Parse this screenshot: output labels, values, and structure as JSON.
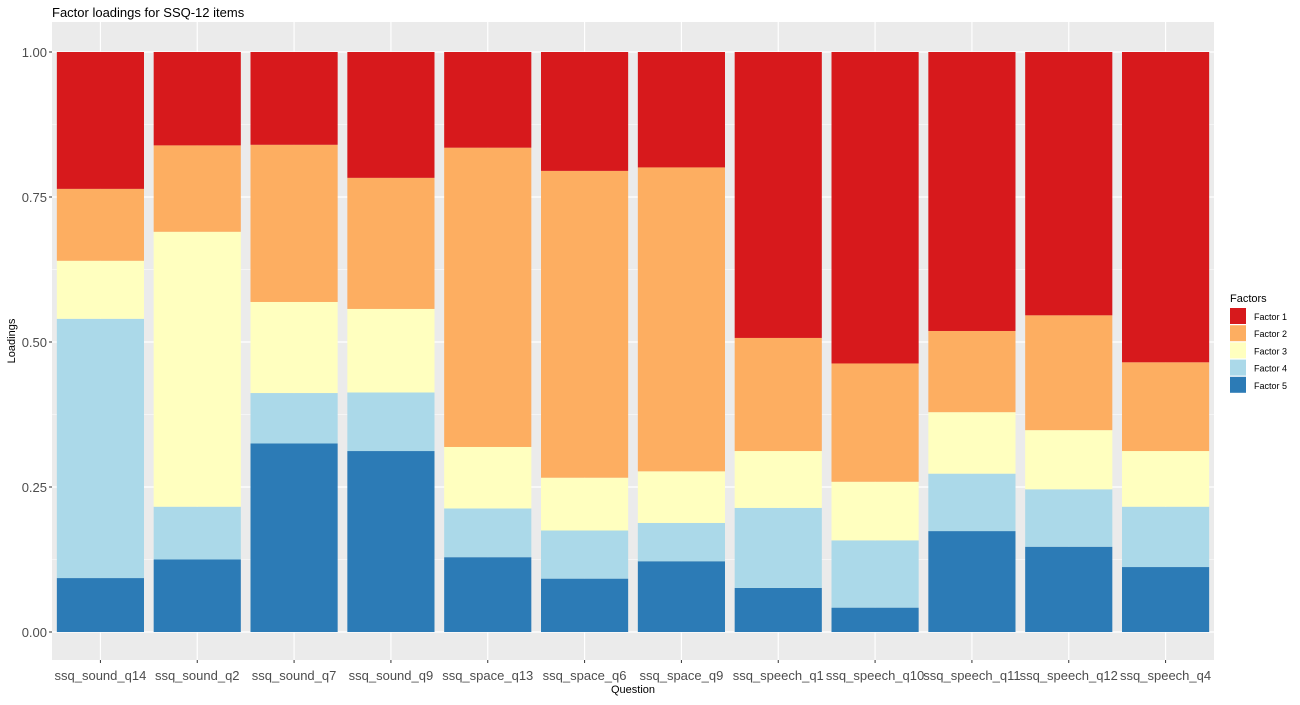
{
  "chart_data": {
    "type": "bar",
    "stacked": true,
    "title": "Factor loadings for SSQ-12 items",
    "xlabel": "Question",
    "ylabel": "Loadings",
    "ylim": [
      0,
      1
    ],
    "yticks": [
      0,
      0.25,
      0.5,
      0.75,
      1
    ],
    "ytick_labels": [
      "0.00",
      "0.25",
      "0.50",
      "0.75",
      "1.00"
    ],
    "grid": true,
    "legend_title": "Factors",
    "legend_position": "right",
    "categories": [
      "ssq_sound_q14",
      "ssq_sound_q2",
      "ssq_sound_q7",
      "ssq_sound_q9",
      "ssq_space_q13",
      "ssq_space_q6",
      "ssq_space_q9",
      "ssq_speech_q1",
      "ssq_speech_q10",
      "ssq_speech_q11",
      "ssq_speech_q12",
      "ssq_speech_q4"
    ],
    "series": [
      {
        "name": "Factor 1",
        "color": "#d7191c",
        "values": [
          0.236,
          0.161,
          0.16,
          0.217,
          0.165,
          0.205,
          0.199,
          0.493,
          0.537,
          0.481,
          0.454,
          0.535
        ]
      },
      {
        "name": "Factor 2",
        "color": "#fdae61",
        "values": [
          0.124,
          0.149,
          0.271,
          0.226,
          0.516,
          0.529,
          0.524,
          0.195,
          0.204,
          0.14,
          0.198,
          0.153
        ]
      },
      {
        "name": "Factor 3",
        "color": "#ffffbf",
        "values": [
          0.1,
          0.474,
          0.157,
          0.144,
          0.106,
          0.091,
          0.089,
          0.098,
          0.101,
          0.106,
          0.102,
          0.096
        ]
      },
      {
        "name": "Factor 4",
        "color": "#abd9e9",
        "values": [
          0.447,
          0.091,
          0.087,
          0.101,
          0.084,
          0.083,
          0.066,
          0.138,
          0.116,
          0.099,
          0.099,
          0.104
        ]
      },
      {
        "name": "Factor 5",
        "color": "#2c7bb6",
        "values": [
          0.093,
          0.125,
          0.325,
          0.312,
          0.129,
          0.092,
          0.122,
          0.076,
          0.042,
          0.174,
          0.147,
          0.112
        ]
      }
    ]
  }
}
